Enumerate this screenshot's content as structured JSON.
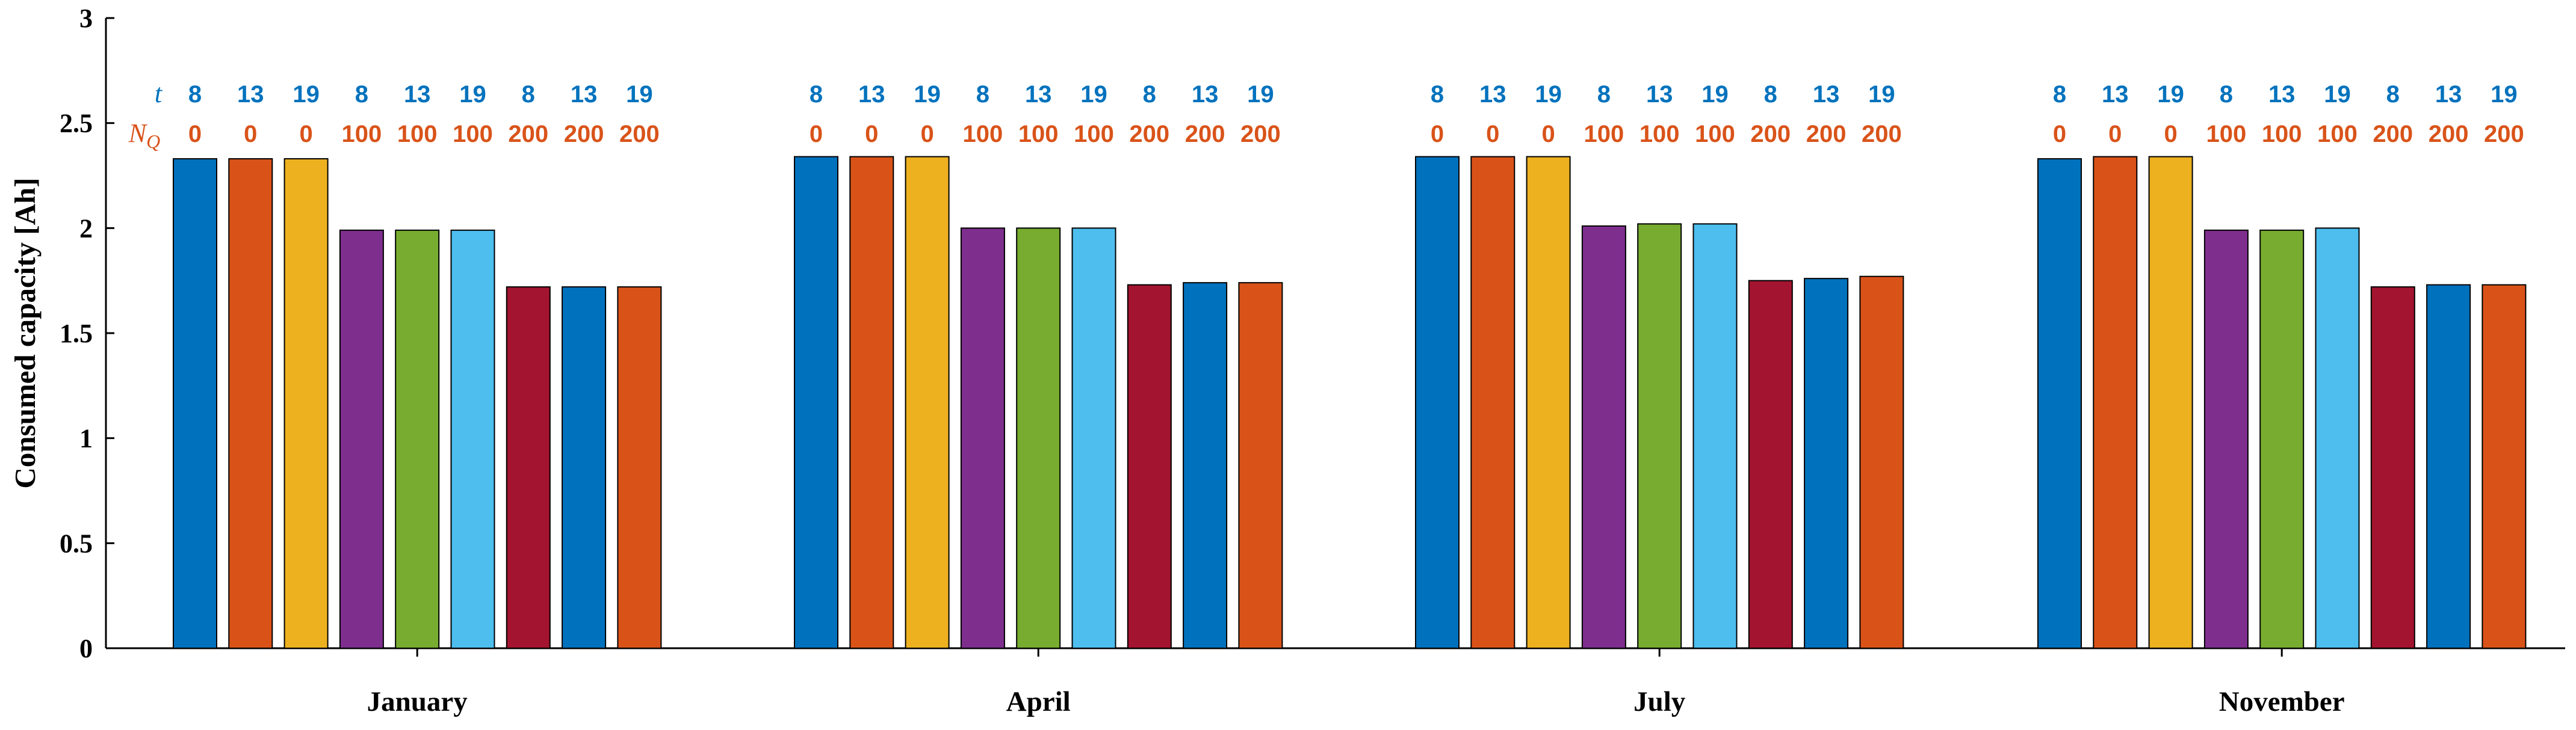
{
  "chart_data": {
    "type": "bar",
    "ylabel": "Consumed capacity [Ah]",
    "xlabel": "",
    "ylim": [
      0,
      3
    ],
    "yticks": [
      0,
      0.5,
      1,
      1.5,
      2,
      2.5,
      3
    ],
    "ytick_labels": [
      "0",
      "0.5",
      "1",
      "1.5",
      "2",
      "2.5",
      "3"
    ],
    "categories": [
      "January",
      "April",
      "July",
      "November"
    ],
    "row_labels": {
      "t": {
        "symbol": "t",
        "subscript": "",
        "color": "#0072BD"
      },
      "nq": {
        "symbol": "N",
        "subscript": "Q",
        "color": "#D95319"
      }
    },
    "series": [
      {
        "t": "8",
        "nq": "0",
        "color": "#0072BD",
        "values": [
          2.33,
          2.34,
          2.34,
          2.33
        ]
      },
      {
        "t": "13",
        "nq": "0",
        "color": "#D95319",
        "values": [
          2.33,
          2.34,
          2.34,
          2.34
        ]
      },
      {
        "t": "19",
        "nq": "0",
        "color": "#EDB120",
        "values": [
          2.33,
          2.34,
          2.34,
          2.34
        ]
      },
      {
        "t": "8",
        "nq": "100",
        "color": "#7E2F8E",
        "values": [
          1.99,
          2.0,
          2.01,
          1.99
        ]
      },
      {
        "t": "13",
        "nq": "100",
        "color": "#77AC30",
        "values": [
          1.99,
          2.0,
          2.02,
          1.99
        ]
      },
      {
        "t": "19",
        "nq": "100",
        "color": "#4DBEEE",
        "values": [
          1.99,
          2.0,
          2.02,
          2.0
        ]
      },
      {
        "t": "8",
        "nq": "200",
        "color": "#A2142F",
        "values": [
          1.72,
          1.73,
          1.75,
          1.72
        ]
      },
      {
        "t": "13",
        "nq": "200",
        "color": "#0072BD",
        "values": [
          1.72,
          1.74,
          1.76,
          1.73
        ]
      },
      {
        "t": "19",
        "nq": "200",
        "color": "#D95319",
        "values": [
          1.72,
          1.74,
          1.77,
          1.73
        ]
      }
    ]
  }
}
